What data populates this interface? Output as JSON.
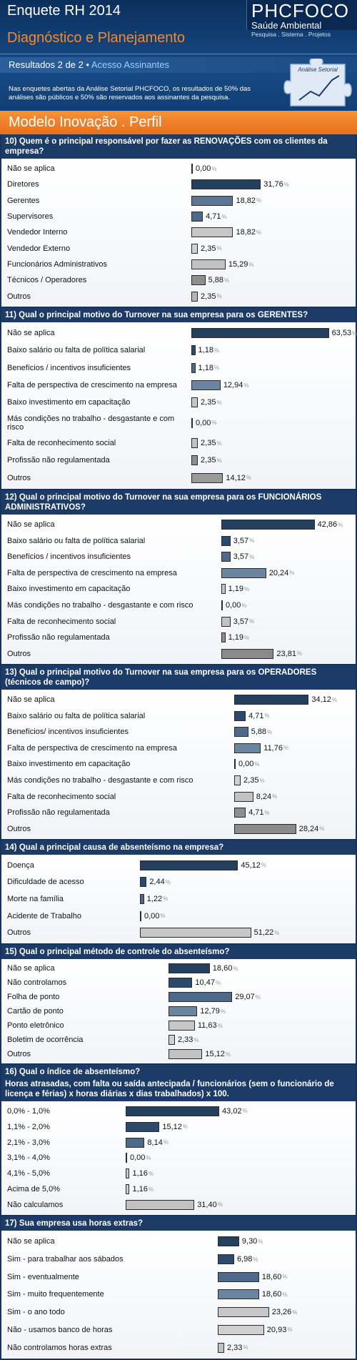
{
  "header": {
    "title": "Enquete RH 2014",
    "subtitle": "Diagnóstico e Planejamento",
    "brand": "PHCFOCO",
    "brand_line": "Saúde Ambiental",
    "brand_tagline": "Pesquisa . Sistema . Projetos",
    "results": "Resultados 2 de 2 •",
    "access": "Acesso Assinantes",
    "badge": "Análise Setorial",
    "note": "Nas enquetes abertas da Análise Setorial PHCFOCO, os resultados de 50% das análises são públicos e 50% são reservados aos assinantes da pesquisa.",
    "section": "Modelo Inovação . Perfil"
  },
  "chart_data": [
    {
      "type": "bar",
      "title": "10) Quem é o principal responsável por fazer as RENOVAÇÕES com os clientes da empresa?",
      "unit": "%",
      "categories": [
        "Não se aplica",
        "Diretores",
        "Gerentes",
        "Supervisores",
        "Vendedor Interno",
        "Vendedor Externo",
        "Funcionários Administrativos",
        "Técnicos / Operadores",
        "Outros"
      ],
      "values": [
        0,
        31.76,
        18.82,
        4.71,
        18.82,
        2.35,
        15.29,
        5.88,
        2.35
      ],
      "value_labels": [
        "0,00",
        "31,76",
        "18,82",
        "4,71",
        "18,82",
        "2,35",
        "15,29",
        "5,88",
        "2,35"
      ],
      "colors": [
        "#1f3b5e",
        "#23405f",
        "#5c7694",
        "#4d6a8a",
        "#c6c6c6",
        "#d0d0d0",
        "#c2c2c2",
        "#8e8e8e",
        "#b4b4b4"
      ]
    },
    {
      "type": "bar",
      "title": "11) Qual o principal motivo do Turnover na sua empresa para os GERENTES?",
      "unit": "%",
      "categories": [
        "Não se aplica",
        "Baixo salário ou falta de política salarial",
        "Benefícios / incentivos insuficientes",
        "Falta de perspectiva de crescimento na empresa",
        "Baixo investimento em capacitação",
        "Más condições no trabalho - desgastante e com risco",
        "Falta de reconhecimento social",
        "Profissão não regulamentada",
        "Outros"
      ],
      "values": [
        63.53,
        1.18,
        1.18,
        12.94,
        2.35,
        0,
        2.35,
        2.35,
        14.12
      ],
      "value_labels": [
        "63,53",
        "1,18",
        "1,18",
        "12,94",
        "2,35",
        "0,00",
        "2,35",
        "2,35",
        "14,12"
      ],
      "colors": [
        "#23405f",
        "#2c4a6e",
        "#4d6a8a",
        "#6b84a0",
        "#c6c6c6",
        "#d0d0d0",
        "#c2c2c2",
        "#8e8e8e",
        "#9a9a9a"
      ]
    },
    {
      "type": "bar",
      "title": "12) Qual o principal motivo do Turnover na sua empresa para os FUNCIONÁRIOS ADMINISTRATIVOS?",
      "unit": "%",
      "categories": [
        "Não se aplica",
        "Baixo salário ou falta de política salarial",
        "Benefícios / incentivos insuficientes",
        "Falta de perspectiva de crescimento na empresa",
        "Baixo investimento em capacitação",
        "Más condições no trabalho - desgastante e com risco",
        "Falta de reconhecimento social",
        "Profissão não regulamentada",
        "Outros"
      ],
      "values": [
        42.86,
        3.57,
        3.57,
        20.24,
        1.19,
        0,
        3.57,
        1.19,
        23.81
      ],
      "value_labels": [
        "42,86",
        "3,57",
        "3,57",
        "20,24",
        "1,19",
        "0,00",
        "3,57",
        "1,19",
        "23,81"
      ],
      "colors": [
        "#23405f",
        "#2c4a6e",
        "#4d6a8a",
        "#6b84a0",
        "#c6c6c6",
        "#d0d0d0",
        "#c2c2c2",
        "#8e8e8e",
        "#8a8a8a"
      ]
    },
    {
      "type": "bar",
      "title": "13) Qual o principal motivo do Turnover na sua empresa para os OPERADORES (técnicos de campo)?",
      "unit": "%",
      "categories": [
        "Não se aplica",
        "Baixo salário ou falta de política salarial",
        "Benefícios/ incentivos insuficientes",
        "Falta de perspectiva de crescimento na empresa",
        "Baixo investimento em capacitação",
        "Más condições no trabalho - desgastante e com risco",
        "Falta de reconhecimento social",
        "Profissão não regulamentada",
        "Outros"
      ],
      "values": [
        34.12,
        4.71,
        5.88,
        11.76,
        0,
        2.35,
        8.24,
        4.71,
        28.24
      ],
      "value_labels": [
        "34,12",
        "4,71",
        "5,88",
        "11,76",
        "0,00",
        "2,35",
        "8,24",
        "4,71",
        "28,24"
      ],
      "colors": [
        "#23405f",
        "#2c4a6e",
        "#4d6a8a",
        "#6b84a0",
        "#c6c6c6",
        "#d0d0d0",
        "#c2c2c2",
        "#8e8e8e",
        "#8a8a8a"
      ]
    },
    {
      "type": "bar",
      "title": "14) Qual a principal causa de absenteísmo na empresa?",
      "unit": "%",
      "categories": [
        "Doença",
        "Dificuldade de acesso",
        "Morte na família",
        "Acidente de Trabalho",
        "Outros"
      ],
      "values": [
        45.12,
        2.44,
        1.22,
        0,
        51.22
      ],
      "value_labels": [
        "45,12",
        "2,44",
        "1,22",
        "0,00",
        "51,22"
      ],
      "colors": [
        "#23405f",
        "#2c4a6e",
        "#4d6a8a",
        "#6b84a0",
        "#c6c6c6"
      ]
    },
    {
      "type": "bar",
      "title": "15) Qual o principal método de controle do absenteísmo?",
      "unit": "%",
      "categories": [
        "Não se aplica",
        "Não controlamos",
        "Folha de ponto",
        "Cartão de ponto",
        "Ponto eletrônico",
        "Boletim de ocorrência",
        "Outros"
      ],
      "values": [
        18.6,
        10.47,
        29.07,
        12.79,
        11.63,
        2.33,
        15.12
      ],
      "value_labels": [
        "18,60",
        "10,47",
        "29,07",
        "12,79",
        "11,63",
        "2,33",
        "15,12"
      ],
      "colors": [
        "#23405f",
        "#2c4a6e",
        "#4d6a8a",
        "#6b84a0",
        "#c6c6c6",
        "#d0d0d0",
        "#c2c2c2"
      ]
    },
    {
      "type": "bar",
      "title": "16) Qual o índice de absenteísmo?",
      "subtitle": "Horas atrasadas, com falta ou saída antecipada / funcionários (sem o funcionário de licença e férias) x horas diárias x dias trabalhados) x 100.",
      "unit": "%",
      "categories": [
        "0,0% - 1,0%",
        "1,1% - 2,0%",
        "2,1% - 3,0%",
        "3,1% - 4,0%",
        "4,1% - 5,0%",
        "Acima de 5,0%",
        "Não calculamos"
      ],
      "values": [
        43.02,
        15.12,
        8.14,
        0,
        1.16,
        1.16,
        31.4
      ],
      "value_labels": [
        "43,02",
        "15,12",
        "8,14",
        "0,00",
        "1,16",
        "1,16",
        "31,40"
      ],
      "colors": [
        "#23405f",
        "#2c4a6e",
        "#4d6a8a",
        "#6b84a0",
        "#c6c6c6",
        "#d0d0d0",
        "#c2c2c2"
      ]
    },
    {
      "type": "bar",
      "title": "17) Sua empresa usa horas extras?",
      "unit": "%",
      "categories": [
        "Não se aplica",
        "Sim - para trabalhar aos sábados",
        "Sim - eventualmente",
        "Sim - muito frequentemente",
        "Sim - o ano todo",
        "Não - usamos banco de horas",
        "Não controlamos horas extras"
      ],
      "values": [
        9.3,
        6.98,
        18.6,
        18.6,
        23.26,
        20.93,
        2.33
      ],
      "value_labels": [
        "9,30",
        "6,98",
        "18,60",
        "18,60",
        "23,26",
        "20,93",
        "2,33"
      ],
      "colors": [
        "#23405f",
        "#2c4a6e",
        "#4d6a8a",
        "#6b84a0",
        "#c6c6c6",
        "#d0d0d0",
        "#c2c2c2"
      ]
    }
  ]
}
